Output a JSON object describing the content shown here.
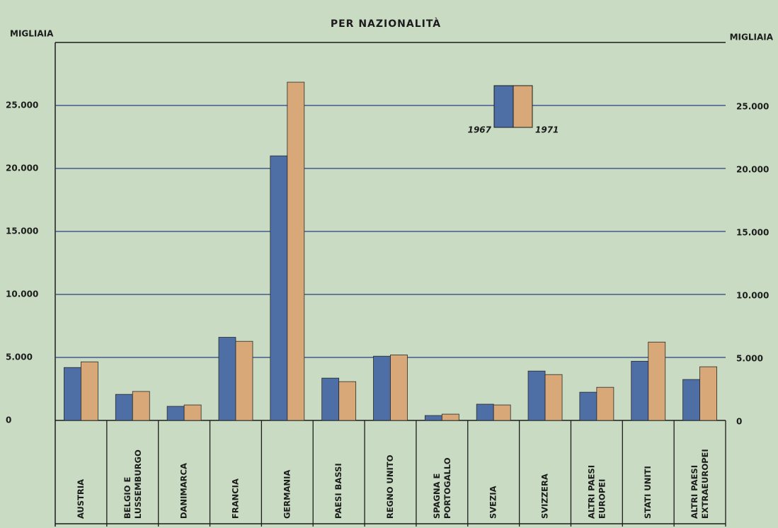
{
  "chart_data": {
    "type": "bar",
    "title": "PER NAZIONALITÀ",
    "y_label": "MIGLIAIA",
    "y2_label": "MIGLIAIA",
    "categories": [
      "AUSTRIA",
      "BELGIO E\nLUSSEMBURGO",
      "DANIMARCA",
      "FRANCIA",
      "GERMANIA",
      "PAESI BASSI",
      "REGNO UNITO",
      "SPAGNA E\nPORTOGALLO",
      "SVEZIA",
      "SVIZZERA",
      "ALTRI PAESI\nEUROPEI",
      "STATI UNITI",
      "ALTRI PAESI\nEXTRAEUROPEI"
    ],
    "series": [
      {
        "name": "1967",
        "color": "#4d6fa6",
        "values": [
          4200,
          2070,
          1120,
          6600,
          21000,
          3360,
          5100,
          390,
          1290,
          3920,
          2240,
          4700,
          3250
        ]
      },
      {
        "name": "1971",
        "color": "#d8a878",
        "values": [
          4650,
          2300,
          1230,
          6280,
          26850,
          3080,
          5200,
          500,
          1230,
          3640,
          2630,
          6220,
          4260
        ]
      }
    ],
    "ylim": [
      0,
      30000
    ],
    "yticks": [
      0,
      {
        "value": 5000,
        "label": "5.000"
      },
      {
        "value": 10000,
        "label": "10.000"
      },
      {
        "value": 15000,
        "label": "15.000"
      },
      {
        "value": 20000,
        "label": "20.000"
      },
      {
        "value": 25000,
        "label": "25.000"
      }
    ],
    "grid": true
  }
}
